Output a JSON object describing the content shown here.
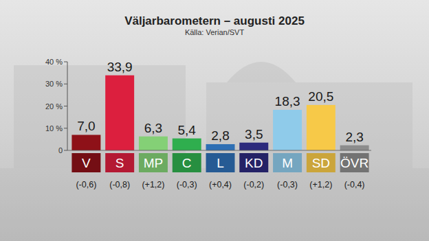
{
  "chart_data": {
    "type": "bar",
    "title": "Väljarbarometern – augusti 2025",
    "subtitle": "Källa: Verian/SVT",
    "categories": [
      "V",
      "S",
      "MP",
      "C",
      "L",
      "KD",
      "M",
      "SD",
      "ÖVR"
    ],
    "values": [
      7.0,
      33.9,
      6.3,
      5.4,
      2.8,
      3.5,
      18.3,
      20.5,
      2.3
    ],
    "value_labels": [
      "7,0",
      "33,9",
      "6,3",
      "5,4",
      "2,8",
      "3,5",
      "18,3",
      "20,5",
      "2,3"
    ],
    "changes": [
      -0.6,
      -0.8,
      1.2,
      -0.3,
      0.4,
      -0.2,
      -0.3,
      1.2,
      -0.4
    ],
    "change_labels": [
      "(-0,6)",
      "(-0,8)",
      "(+1,2)",
      "(-0,3)",
      "(+0,4)",
      "(-0,2)",
      "(-0,3)",
      "(+1,2)",
      "(-0,4)"
    ],
    "colors": [
      "#8e1118",
      "#dc1f3e",
      "#84d076",
      "#2fae4e",
      "#2e6fb4",
      "#2c2a7c",
      "#8fcbea",
      "#f7c948",
      "#8c8c8c"
    ],
    "ylim": [
      0,
      40
    ],
    "yticks": [
      0,
      {
        "value": 10,
        "label": "10 %"
      },
      {
        "value": 20,
        "label": "20 %"
      },
      {
        "value": 30,
        "label": "30 %"
      },
      {
        "value": 40,
        "label": "40 %"
      }
    ],
    "grid": false,
    "data_labels": true
  }
}
